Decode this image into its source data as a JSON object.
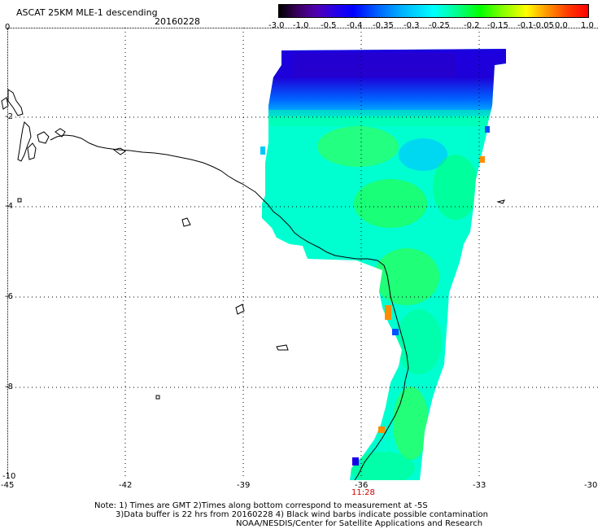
{
  "header": {
    "title": "ASCAT 25KM MLE-1 descending",
    "date": "20160228"
  },
  "colorbar": {
    "labels": [
      "-3.0",
      "-1.0",
      "-0.5",
      "-0.4",
      "-0.35",
      "-0.3",
      "-0.25",
      "-0.2",
      "-0.15",
      "-0.1",
      "-0.05",
      "0.0",
      "1.0"
    ]
  },
  "axes": {
    "y_labels": [
      "0",
      "-2",
      "-4",
      "-6",
      "-8",
      "-10"
    ],
    "x_labels": [
      "-45",
      "-42",
      "-39",
      "-36",
      "-33",
      "-30"
    ]
  },
  "time_label": "11:28",
  "notes": {
    "line1": "Note: 1) Times are GMT 2)Times along bottom correspond to measurement at -5S",
    "line2": "3)Data buffer is 22 hrs from 20160228 4) Black wind barbs indicate possible contamination",
    "line3": "NOAA/NESDIS/Center for Satellite Applications and Research"
  },
  "colors": {
    "deep_blue": "#1a00e6",
    "blue": "#0050ff",
    "cyan": "#00ffff",
    "aqua": "#00ffc8",
    "green": "#00ff00",
    "orange": "#ff8c00"
  }
}
